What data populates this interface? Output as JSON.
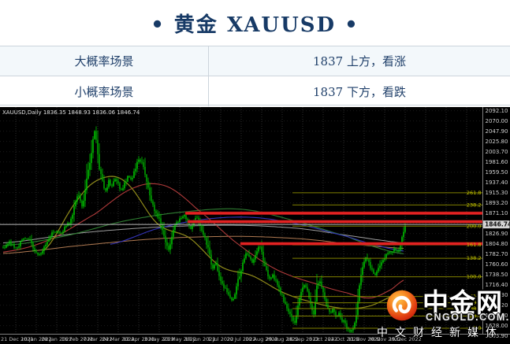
{
  "header": {
    "title": "• 黄金 XAUUSD •"
  },
  "scenario_table": {
    "rows": [
      {
        "label": "大概率场景",
        "value": "1837 上方，看涨"
      },
      {
        "label": "小概率场景",
        "value": "1837 下方，看跌"
      }
    ]
  },
  "watermark": {
    "brand": "中金网",
    "url": "CNGOLD.COM.CN",
    "slogan": "中文财经新媒体",
    "logo_colors": {
      "outer": "#c01c08",
      "mid": "#e03c12",
      "inner": "#f5821f",
      "highlight": "#ffc24a"
    }
  },
  "chart_data": {
    "type": "candlestick",
    "symbol": "XAUUSD",
    "timeframe": "Daily",
    "ohlc_text": "XAUUSD,Daily 1836.35 1848.93 1836.06 1846.74",
    "open": 1836.35,
    "high": 1848.93,
    "low": 1836.06,
    "close": 1846.74,
    "current_price": "1846.74",
    "ylim": [
      1606,
      2100
    ],
    "grid": true,
    "y_axis_labels": [
      2092.1,
      2070.0,
      2047.9,
      2025.8,
      2003.7,
      1981.6,
      1959.5,
      1937.4,
      1915.3,
      1893.2,
      1871.1,
      1849.0,
      1826.9,
      1804.8,
      1782.7,
      1760.6,
      1738.5,
      1716.4,
      1694.3,
      1672.2,
      1650.1,
      1628.0,
      1605.9
    ],
    "x_axis_labels": [
      "21 Dec 2021",
      "10 Jan 2022",
      "28 Jan 2022",
      "16 Feb 2022",
      "7 Mar 2022",
      "24 Mar 2022",
      "12 Apr 2022",
      "3 May 2022",
      "23 May 2022",
      "10 Jun 2022",
      "1 Jul 2022",
      "20 Jul 2022",
      "10 Aug 2022",
      "29 Aug 2022",
      "16 Sep 2022",
      "5 Oct 2022",
      "24 Oct 2022",
      "11 Nov 2022",
      "30 Nov 2022",
      "19 Dec 2022"
    ],
    "price_path": [
      [
        4,
        1798
      ],
      [
        12,
        1808
      ],
      [
        20,
        1796
      ],
      [
        28,
        1810
      ],
      [
        36,
        1816
      ],
      [
        44,
        1792
      ],
      [
        50,
        1782
      ],
      [
        56,
        1800
      ],
      [
        62,
        1818
      ],
      [
        70,
        1832
      ],
      [
        78,
        1826
      ],
      [
        84,
        1844
      ],
      [
        90,
        1856
      ],
      [
        96,
        1898
      ],
      [
        100,
        1908
      ],
      [
        104,
        1886
      ],
      [
        108,
        1922
      ],
      [
        112,
        1968
      ],
      [
        116,
        1998
      ],
      [
        119,
        2044
      ],
      [
        122,
        2028
      ],
      [
        126,
        1968
      ],
      [
        130,
        1942
      ],
      [
        134,
        1920
      ],
      [
        138,
        1940
      ],
      [
        142,
        1928
      ],
      [
        146,
        1946
      ],
      [
        150,
        1932
      ],
      [
        154,
        1920
      ],
      [
        158,
        1934
      ],
      [
        162,
        1948
      ],
      [
        166,
        1942
      ],
      [
        170,
        1960
      ],
      [
        174,
        1978
      ],
      [
        178,
        1986
      ],
      [
        182,
        1972
      ],
      [
        186,
        1940
      ],
      [
        190,
        1912
      ],
      [
        194,
        1886
      ],
      [
        198,
        1872
      ],
      [
        202,
        1858
      ],
      [
        206,
        1838
      ],
      [
        210,
        1812
      ],
      [
        214,
        1790
      ],
      [
        218,
        1822
      ],
      [
        222,
        1846
      ],
      [
        226,
        1854
      ],
      [
        230,
        1862
      ],
      [
        234,
        1868
      ],
      [
        238,
        1852
      ],
      [
        242,
        1840
      ],
      [
        246,
        1852
      ],
      [
        250,
        1864
      ],
      [
        254,
        1842
      ],
      [
        258,
        1824
      ],
      [
        262,
        1806
      ],
      [
        266,
        1780
      ],
      [
        270,
        1752
      ],
      [
        274,
        1760
      ],
      [
        278,
        1735
      ],
      [
        283,
        1716
      ],
      [
        290,
        1695
      ],
      [
        296,
        1686
      ],
      [
        300,
        1712
      ],
      [
        304,
        1738
      ],
      [
        308,
        1762
      ],
      [
        312,
        1788
      ],
      [
        316,
        1778
      ],
      [
        320,
        1768
      ],
      [
        326,
        1788
      ],
      [
        330,
        1798
      ],
      [
        334,
        1772
      ],
      [
        338,
        1748
      ],
      [
        342,
        1730
      ],
      [
        346,
        1736
      ],
      [
        350,
        1722
      ],
      [
        354,
        1706
      ],
      [
        358,
        1692
      ],
      [
        362,
        1672
      ],
      [
        366,
        1662
      ],
      [
        370,
        1648
      ],
      [
        374,
        1636
      ],
      [
        378,
        1668
      ],
      [
        382,
        1700
      ],
      [
        386,
        1714
      ],
      [
        390,
        1700
      ],
      [
        394,
        1678
      ],
      [
        398,
        1656
      ],
      [
        402,
        1712
      ],
      [
        406,
        1722
      ],
      [
        410,
        1700
      ],
      [
        414,
        1672
      ],
      [
        418,
        1655
      ],
      [
        422,
        1662
      ],
      [
        426,
        1648
      ],
      [
        430,
        1652
      ],
      [
        434,
        1640
      ],
      [
        438,
        1632
      ],
      [
        442,
        1620
      ],
      [
        446,
        1618
      ],
      [
        450,
        1636
      ],
      [
        452,
        1650
      ],
      [
        456,
        1712
      ],
      [
        460,
        1758
      ],
      [
        464,
        1772
      ],
      [
        468,
        1762
      ],
      [
        472,
        1748
      ],
      [
        476,
        1740
      ],
      [
        480,
        1752
      ],
      [
        484,
        1768
      ],
      [
        488,
        1778
      ],
      [
        492,
        1786
      ],
      [
        496,
        1782
      ],
      [
        500,
        1796
      ],
      [
        504,
        1788
      ],
      [
        508,
        1806
      ],
      [
        511,
        1826
      ],
      [
        514,
        1847
      ]
    ],
    "moving_averages": [
      {
        "name": "ma-slow-sienna",
        "color": "#b07a52",
        "width": 1,
        "points": [
          [
            4,
            1784
          ],
          [
            100,
            1801
          ],
          [
            200,
            1816
          ],
          [
            300,
            1821
          ],
          [
            380,
            1816
          ],
          [
            450,
            1804
          ],
          [
            514,
            1795
          ]
        ]
      },
      {
        "name": "ma-slow-gray",
        "color": "#9c9c9c",
        "width": 1,
        "points": [
          [
            4,
            1807
          ],
          [
            100,
            1828
          ],
          [
            200,
            1841
          ],
          [
            300,
            1845
          ],
          [
            380,
            1838
          ],
          [
            450,
            1821
          ],
          [
            514,
            1807
          ]
        ]
      },
      {
        "name": "ma-green",
        "color": "#2f7d32",
        "width": 1.1,
        "points": [
          [
            4,
            1801
          ],
          [
            80,
            1821
          ],
          [
            160,
            1855
          ],
          [
            240,
            1875
          ],
          [
            310,
            1879
          ],
          [
            380,
            1852
          ],
          [
            440,
            1821
          ],
          [
            480,
            1796
          ],
          [
            514,
            1783
          ]
        ]
      },
      {
        "name": "ma-blue",
        "color": "#3434b8",
        "width": 1.1,
        "points": [
          [
            140,
            1804
          ],
          [
            200,
            1838
          ],
          [
            260,
            1858
          ],
          [
            320,
            1862
          ],
          [
            380,
            1847
          ],
          [
            440,
            1821
          ],
          [
            480,
            1801
          ],
          [
            514,
            1789
          ]
        ]
      },
      {
        "name": "ma-red",
        "color": "#b03a3a",
        "width": 1.1,
        "points": [
          [
            4,
            1787
          ],
          [
            60,
            1812
          ],
          [
            120,
            1869
          ],
          [
            170,
            1926
          ],
          [
            210,
            1930
          ],
          [
            250,
            1880
          ],
          [
            300,
            1807
          ],
          [
            350,
            1750
          ],
          [
            400,
            1719
          ],
          [
            440,
            1699
          ],
          [
            470,
            1688
          ],
          [
            495,
            1705
          ],
          [
            514,
            1728
          ]
        ]
      },
      {
        "name": "ma-khaki",
        "color": "#8f8a1a",
        "width": 1.2,
        "points": [
          [
            55,
            1790
          ],
          [
            100,
            1903
          ],
          [
            130,
            1947
          ],
          [
            160,
            1937
          ],
          [
            200,
            1848
          ],
          [
            240,
            1818
          ],
          [
            280,
            1756
          ],
          [
            320,
            1736
          ],
          [
            360,
            1699
          ],
          [
            400,
            1677
          ],
          [
            440,
            1665
          ],
          [
            470,
            1671
          ],
          [
            495,
            1690
          ],
          [
            514,
            1706
          ]
        ]
      }
    ],
    "resistance_bands": [
      {
        "price": 1871.1,
        "x_start": 235,
        "color": "#e32222"
      },
      {
        "price": 1852.8,
        "x_start": 238,
        "color": "#e32222"
      },
      {
        "price": 1805.2,
        "x_start": 305,
        "color": "#e32222"
      }
    ],
    "current_price_line": {
      "price": 1846.74,
      "color": "#b9b9b9"
    },
    "fibo_x_start": 371,
    "fibonacci_levels": [
      {
        "label": "261.8",
        "price": 1915.2
      },
      {
        "label": "238.2",
        "price": 1888.9
      },
      {
        "label": "200.0",
        "price": 1843.1
      },
      {
        "label": "161.8",
        "price": 1802.4
      },
      {
        "label": "138.2",
        "price": 1773.6
      },
      {
        "label": "100.0",
        "price": 1733.7
      },
      {
        "label": "61.8",
        "price": 1691.3
      },
      {
        "label": "50.0",
        "price": 1677.7
      },
      {
        "label": "38.2",
        "price": 1665.0
      },
      {
        "label": "23.6",
        "price": 1648.9
      },
      {
        "label": "0.0",
        "price": 1622.6
      }
    ],
    "colors": {
      "background": "#000000",
      "candle_up": "#00c000",
      "candle_down": "#00a000",
      "wick": "#00c800",
      "grid_v": "#3f3f3f",
      "grid_h": "#2b2b2b",
      "axis_text": "#cfcfcf",
      "date_text": "#bdbdbd",
      "fibo_line": "#7f7f00",
      "fibo_text": "#c8c800",
      "separator": "#808080",
      "price_box_bg": "#d4d4d4",
      "price_box_text": "#111111"
    }
  }
}
